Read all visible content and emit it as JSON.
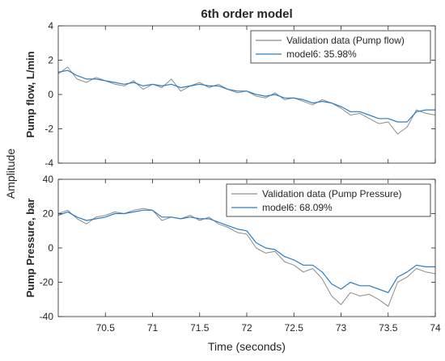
{
  "chart_data": {
    "type": "line",
    "title": "6th order model",
    "xlabel": "Time (seconds)",
    "common_ylabel": "Amplitude",
    "xlim": [
      70,
      74
    ],
    "xticks": [
      70.5,
      71,
      71.5,
      72,
      72.5,
      73,
      73.5,
      74
    ],
    "xtick_labels": [
      "70.5",
      "71",
      "71.5",
      "72",
      "72.5",
      "73",
      "73.5",
      "74"
    ],
    "colors": {
      "validation": "#8c8c8c",
      "model": "#2a7ec4",
      "axes": "#262626",
      "text": "#262626"
    },
    "legend_placement": "top-right",
    "grid": false,
    "subplots": [
      {
        "ylabel": "Pump flow, L/min",
        "ylim": [
          -4,
          4
        ],
        "yticks": [
          -4,
          -2,
          0,
          2,
          4
        ],
        "ytick_labels": [
          "-4",
          "-2",
          "0",
          "2",
          "4"
        ],
        "series": [
          {
            "name": "Validation data (Pump flow)",
            "role": "validation",
            "x": [
              70.0,
              70.1,
              70.2,
              70.3,
              70.4,
              70.5,
              70.6,
              70.7,
              70.8,
              70.9,
              71.0,
              71.1,
              71.2,
              71.3,
              71.4,
              71.5,
              71.6,
              71.7,
              71.8,
              71.9,
              72.0,
              72.1,
              72.2,
              72.3,
              72.4,
              72.5,
              72.6,
              72.7,
              72.8,
              72.9,
              73.0,
              73.1,
              73.2,
              73.3,
              73.4,
              73.5,
              73.6,
              73.7,
              73.8,
              73.9,
              74.0
            ],
            "values": [
              1.2,
              1.6,
              0.9,
              0.7,
              1.0,
              0.8,
              0.6,
              0.5,
              0.8,
              0.3,
              0.6,
              0.4,
              0.9,
              0.2,
              0.5,
              0.7,
              0.4,
              0.6,
              0.3,
              0.1,
              0.2,
              -0.1,
              -0.2,
              0.1,
              -0.3,
              -0.2,
              -0.4,
              -0.6,
              -0.3,
              -0.5,
              -0.8,
              -1.2,
              -1.1,
              -1.4,
              -1.7,
              -1.6,
              -2.3,
              -1.9,
              -0.9,
              -1.1,
              -1.2
            ]
          },
          {
            "name": "model6: 35.98%",
            "role": "model",
            "x": [
              70.0,
              70.1,
              70.2,
              70.3,
              70.4,
              70.5,
              70.6,
              70.7,
              70.8,
              70.9,
              71.0,
              71.1,
              71.2,
              71.3,
              71.4,
              71.5,
              71.6,
              71.7,
              71.8,
              71.9,
              72.0,
              72.1,
              72.2,
              72.3,
              72.4,
              72.5,
              72.6,
              72.7,
              72.8,
              72.9,
              73.0,
              73.1,
              73.2,
              73.3,
              73.4,
              73.5,
              73.6,
              73.7,
              73.8,
              73.9,
              74.0
            ],
            "values": [
              1.3,
              1.4,
              1.1,
              0.9,
              0.9,
              0.8,
              0.7,
              0.6,
              0.7,
              0.5,
              0.6,
              0.5,
              0.6,
              0.4,
              0.5,
              0.6,
              0.5,
              0.5,
              0.3,
              0.2,
              0.2,
              0.0,
              -0.1,
              0.0,
              -0.2,
              -0.2,
              -0.3,
              -0.5,
              -0.4,
              -0.5,
              -0.7,
              -1.0,
              -1.0,
              -1.2,
              -1.4,
              -1.4,
              -1.6,
              -1.6,
              -1.0,
              -0.9,
              -0.9
            ]
          }
        ]
      },
      {
        "ylabel": "Pump Pressure, bar",
        "ylim": [
          -40,
          40
        ],
        "yticks": [
          -40,
          -20,
          0,
          20,
          40
        ],
        "ytick_labels": [
          "-40",
          "-20",
          "0",
          "20",
          "40"
        ],
        "series": [
          {
            "name": "Validation data (Pump Pressure)",
            "role": "validation",
            "x": [
              70.0,
              70.1,
              70.2,
              70.3,
              70.4,
              70.5,
              70.6,
              70.7,
              70.8,
              70.9,
              71.0,
              71.1,
              71.2,
              71.3,
              71.4,
              71.5,
              71.6,
              71.7,
              71.8,
              71.9,
              72.0,
              72.1,
              72.2,
              72.3,
              72.4,
              72.5,
              72.6,
              72.7,
              72.8,
              72.9,
              73.0,
              73.1,
              73.2,
              73.3,
              73.4,
              73.5,
              73.6,
              73.7,
              73.8,
              73.9,
              74.0
            ],
            "values": [
              20,
              22,
              17,
              14,
              18,
              19,
              21,
              20,
              22,
              23,
              22,
              16,
              18,
              17,
              19,
              16,
              18,
              14,
              12,
              9,
              8,
              0,
              -3,
              -2,
              -8,
              -10,
              -14,
              -12,
              -18,
              -28,
              -33,
              -26,
              -28,
              -27,
              -30,
              -34,
              -20,
              -17,
              -12,
              -14,
              -15
            ]
          },
          {
            "name": "model6: 68.09%",
            "role": "model",
            "x": [
              70.0,
              70.1,
              70.2,
              70.3,
              70.4,
              70.5,
              70.6,
              70.7,
              70.8,
              70.9,
              71.0,
              71.1,
              71.2,
              71.3,
              71.4,
              71.5,
              71.6,
              71.7,
              71.8,
              71.9,
              72.0,
              72.1,
              72.2,
              72.3,
              72.4,
              72.5,
              72.6,
              72.7,
              72.8,
              72.9,
              73.0,
              73.1,
              73.2,
              73.3,
              73.4,
              73.5,
              73.6,
              73.7,
              73.8,
              73.9,
              74.0
            ],
            "values": [
              19,
              21,
              18,
              16,
              17,
              18,
              20,
              20,
              21,
              22,
              22,
              18,
              18,
              17,
              18,
              17,
              17,
              15,
              13,
              11,
              10,
              3,
              0,
              -1,
              -5,
              -7,
              -10,
              -10,
              -14,
              -21,
              -24,
              -20,
              -22,
              -22,
              -24,
              -26,
              -17,
              -14,
              -10,
              -11,
              -11
            ]
          }
        ]
      }
    ]
  }
}
